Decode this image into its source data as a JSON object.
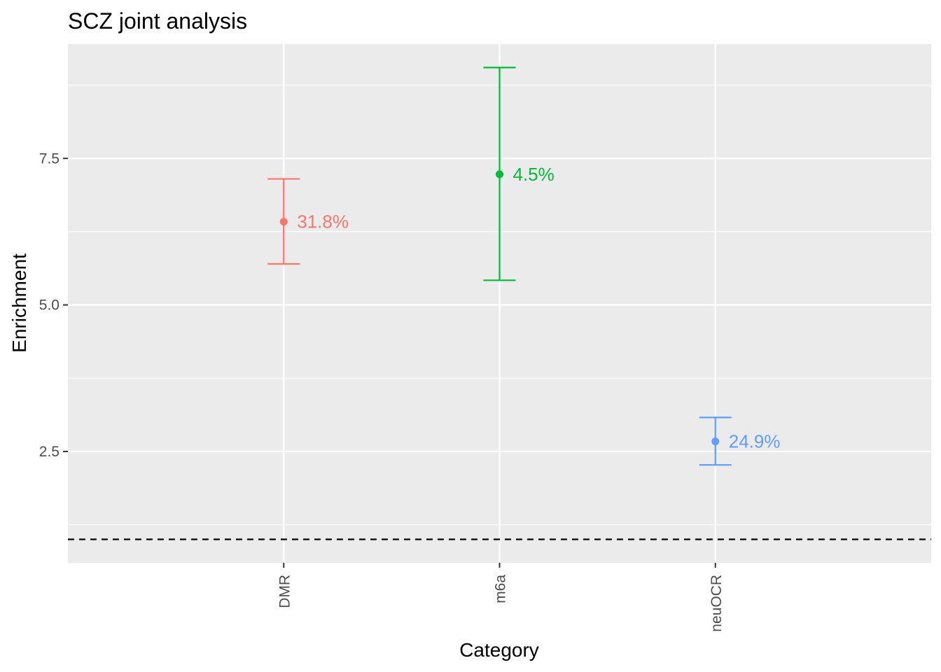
{
  "chart_data": {
    "type": "errorbar",
    "title": "SCZ joint analysis",
    "xlabel": "Category",
    "ylabel": "Enrichment",
    "categories": [
      "DMR",
      "m6a",
      "neuOCR"
    ],
    "points": [
      {
        "category": "DMR",
        "value": 6.42,
        "lower": 5.7,
        "upper": 7.15,
        "label": "31.8%",
        "color": "#F8766D"
      },
      {
        "category": "m6a",
        "value": 7.23,
        "lower": 5.42,
        "upper": 9.05,
        "label": "4.5%",
        "color": "#00BA38"
      },
      {
        "category": "neuOCR",
        "value": 2.67,
        "lower": 2.27,
        "upper": 3.08,
        "label": "24.9%",
        "color": "#619CFF"
      }
    ],
    "yticks": [
      "2.5",
      "5.0",
      "7.5"
    ],
    "ylim": [
      0.6,
      9.45
    ],
    "reference_line": {
      "y": 1,
      "style": "dashed",
      "color": "#000000"
    },
    "grid": true,
    "background_color": "#EBEBEB",
    "legend": "none"
  }
}
